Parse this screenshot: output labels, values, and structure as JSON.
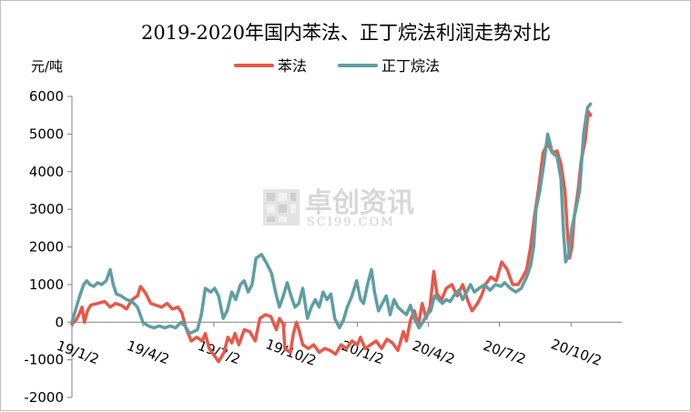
{
  "chart_data": {
    "type": "line",
    "title": "2019-2020年国内苯法、正丁烷法利润走势对比",
    "ylabel": "元/吨",
    "ylim": [
      -2000,
      6000
    ],
    "yticks": [
      6000,
      5000,
      4000,
      3000,
      2000,
      1000,
      0,
      -1000,
      -2000
    ],
    "xlim": [
      "2019-01-01",
      "2020-12-06"
    ],
    "xticks": [
      "2019-01-02",
      "2019-04-02",
      "2019-07-02",
      "2019-10-02",
      "2020-01-02",
      "2020-04-02",
      "2020-07-02",
      "2020-10-02"
    ],
    "xtick_labels": [
      "19/1/2",
      "19/4/2",
      "19/7/2",
      "19/10/2",
      "20/1/2",
      "20/4/2",
      "20/7/2",
      "20/10/2"
    ],
    "legend_position": "top",
    "colors": {
      "series_1": "#e8584a",
      "series_2": "#5f9ea3",
      "axis": "#808080"
    },
    "watermark": {
      "cn": "卓创资讯",
      "en": "SCI99.COM"
    },
    "series": [
      {
        "name": "苯法",
        "points": [
          [
            "2019-01-01",
            -50
          ],
          [
            "2019-01-06",
            50
          ],
          [
            "2019-01-10",
            200
          ],
          [
            "2019-01-14",
            400
          ],
          [
            "2019-01-17",
            0
          ],
          [
            "2019-01-21",
            300
          ],
          [
            "2019-01-25",
            450
          ],
          [
            "2019-02-03",
            500
          ],
          [
            "2019-02-12",
            550
          ],
          [
            "2019-02-19",
            400
          ],
          [
            "2019-02-26",
            500
          ],
          [
            "2019-03-05",
            450
          ],
          [
            "2019-03-12",
            350
          ],
          [
            "2019-03-19",
            600
          ],
          [
            "2019-03-26",
            700
          ],
          [
            "2019-03-30",
            950
          ],
          [
            "2019-04-06",
            750
          ],
          [
            "2019-04-12",
            500
          ],
          [
            "2019-04-19",
            450
          ],
          [
            "2019-04-26",
            400
          ],
          [
            "2019-05-03",
            500
          ],
          [
            "2019-05-10",
            350
          ],
          [
            "2019-05-17",
            400
          ],
          [
            "2019-05-22",
            250
          ],
          [
            "2019-05-27",
            -150
          ],
          [
            "2019-06-03",
            -500
          ],
          [
            "2019-06-10",
            -400
          ],
          [
            "2019-06-17",
            -500
          ],
          [
            "2019-06-21",
            -300
          ],
          [
            "2019-06-26",
            -700
          ],
          [
            "2019-07-03",
            -900
          ],
          [
            "2019-07-08",
            -1050
          ],
          [
            "2019-07-15",
            -800
          ],
          [
            "2019-07-20",
            -400
          ],
          [
            "2019-07-25",
            -550
          ],
          [
            "2019-07-29",
            -300
          ],
          [
            "2019-08-03",
            -600
          ],
          [
            "2019-08-10",
            -200
          ],
          [
            "2019-08-17",
            -250
          ],
          [
            "2019-08-24",
            -500
          ],
          [
            "2019-08-30",
            100
          ],
          [
            "2019-09-06",
            200
          ],
          [
            "2019-09-13",
            150
          ],
          [
            "2019-09-20",
            -200
          ],
          [
            "2019-09-24",
            100
          ],
          [
            "2019-09-29",
            -50
          ],
          [
            "2019-10-01",
            -700
          ],
          [
            "2019-10-08",
            -800
          ],
          [
            "2019-10-12",
            -300
          ],
          [
            "2019-10-16",
            0
          ],
          [
            "2019-10-19",
            -200
          ],
          [
            "2019-10-24",
            -600
          ],
          [
            "2019-10-31",
            -700
          ],
          [
            "2019-11-07",
            -600
          ],
          [
            "2019-11-14",
            -800
          ],
          [
            "2019-11-21",
            -700
          ],
          [
            "2019-11-28",
            -750
          ],
          [
            "2019-12-05",
            -850
          ],
          [
            "2019-12-12",
            -600
          ],
          [
            "2019-12-19",
            -700
          ],
          [
            "2019-12-26",
            -500
          ],
          [
            "2020-01-02",
            -600
          ],
          [
            "2020-01-06",
            -400
          ],
          [
            "2020-01-12",
            -700
          ],
          [
            "2020-01-19",
            -600
          ],
          [
            "2020-01-26",
            -500
          ],
          [
            "2020-02-02",
            -700
          ],
          [
            "2020-02-09",
            -450
          ],
          [
            "2020-02-16",
            -550
          ],
          [
            "2020-02-23",
            -750
          ],
          [
            "2020-03-01",
            -250
          ],
          [
            "2020-03-05",
            -500
          ],
          [
            "2020-03-10",
            50
          ],
          [
            "2020-03-15",
            300
          ],
          [
            "2020-03-20",
            -100
          ],
          [
            "2020-03-25",
            500
          ],
          [
            "2020-03-30",
            100
          ],
          [
            "2020-04-04",
            400
          ],
          [
            "2020-04-09",
            1350
          ],
          [
            "2020-04-13",
            750
          ],
          [
            "2020-04-19",
            600
          ],
          [
            "2020-04-25",
            900
          ],
          [
            "2020-05-02",
            1000
          ],
          [
            "2020-05-09",
            700
          ],
          [
            "2020-05-16",
            1000
          ],
          [
            "2020-05-23",
            550
          ],
          [
            "2020-05-28",
            300
          ],
          [
            "2020-06-04",
            500
          ],
          [
            "2020-06-09",
            700
          ],
          [
            "2020-06-14",
            1000
          ],
          [
            "2020-06-21",
            1200
          ],
          [
            "2020-06-28",
            1100
          ],
          [
            "2020-07-05",
            1600
          ],
          [
            "2020-07-12",
            1400
          ],
          [
            "2020-07-19",
            1000
          ],
          [
            "2020-07-26",
            1000
          ],
          [
            "2020-08-01",
            1200
          ],
          [
            "2020-08-06",
            1400
          ],
          [
            "2020-08-11",
            2000
          ],
          [
            "2020-08-16",
            2800
          ],
          [
            "2020-08-21",
            3500
          ],
          [
            "2020-08-27",
            4500
          ],
          [
            "2020-09-02",
            4750
          ],
          [
            "2020-09-08",
            4500
          ],
          [
            "2020-09-14",
            4550
          ],
          [
            "2020-09-19",
            4200
          ],
          [
            "2020-09-24",
            3500
          ],
          [
            "2020-09-27",
            2500
          ],
          [
            "2020-09-30",
            1700
          ],
          [
            "2020-10-03",
            2000
          ],
          [
            "2020-10-06",
            2800
          ],
          [
            "2020-10-11",
            3500
          ],
          [
            "2020-10-15",
            4300
          ],
          [
            "2020-10-20",
            4800
          ],
          [
            "2020-10-24",
            5600
          ],
          [
            "2020-10-27",
            5500
          ]
        ]
      },
      {
        "name": "正丁烷法",
        "points": [
          [
            "2019-01-01",
            0
          ],
          [
            "2019-01-06",
            350
          ],
          [
            "2019-01-11",
            700
          ],
          [
            "2019-01-16",
            1000
          ],
          [
            "2019-01-20",
            1100
          ],
          [
            "2019-01-24",
            1000
          ],
          [
            "2019-01-29",
            950
          ],
          [
            "2019-02-03",
            1050
          ],
          [
            "2019-02-08",
            1000
          ],
          [
            "2019-02-14",
            1100
          ],
          [
            "2019-02-19",
            1400
          ],
          [
            "2019-02-23",
            1000
          ],
          [
            "2019-02-27",
            750
          ],
          [
            "2019-03-05",
            700
          ],
          [
            "2019-03-12",
            600
          ],
          [
            "2019-03-19",
            550
          ],
          [
            "2019-03-26",
            400
          ],
          [
            "2019-04-02",
            0
          ],
          [
            "2019-04-09",
            -100
          ],
          [
            "2019-04-16",
            -150
          ],
          [
            "2019-04-23",
            -100
          ],
          [
            "2019-04-30",
            -150
          ],
          [
            "2019-05-07",
            -100
          ],
          [
            "2019-05-14",
            -150
          ],
          [
            "2019-05-21",
            0
          ],
          [
            "2019-05-26",
            -100
          ],
          [
            "2019-06-01",
            -300
          ],
          [
            "2019-06-06",
            -250
          ],
          [
            "2019-06-11",
            -200
          ],
          [
            "2019-06-16",
            200
          ],
          [
            "2019-06-21",
            900
          ],
          [
            "2019-06-28",
            800
          ],
          [
            "2019-07-03",
            900
          ],
          [
            "2019-07-08",
            700
          ],
          [
            "2019-07-14",
            100
          ],
          [
            "2019-07-19",
            300
          ],
          [
            "2019-07-25",
            800
          ],
          [
            "2019-07-30",
            600
          ],
          [
            "2019-08-05",
            1000
          ],
          [
            "2019-08-10",
            1100
          ],
          [
            "2019-08-15",
            800
          ],
          [
            "2019-08-20",
            1000
          ],
          [
            "2019-08-25",
            1700
          ],
          [
            "2019-09-01",
            1800
          ],
          [
            "2019-09-08",
            1550
          ],
          [
            "2019-09-14",
            1300
          ],
          [
            "2019-09-19",
            800
          ],
          [
            "2019-09-24",
            400
          ],
          [
            "2019-09-29",
            700
          ],
          [
            "2019-10-04",
            1050
          ],
          [
            "2019-10-09",
            700
          ],
          [
            "2019-10-14",
            400
          ],
          [
            "2019-10-19",
            500
          ],
          [
            "2019-10-24",
            900
          ],
          [
            "2019-10-30",
            100
          ],
          [
            "2019-11-04",
            400
          ],
          [
            "2019-11-09",
            600
          ],
          [
            "2019-11-14",
            400
          ],
          [
            "2019-11-19",
            800
          ],
          [
            "2019-11-24",
            600
          ],
          [
            "2019-11-29",
            750
          ],
          [
            "2019-12-04",
            100
          ],
          [
            "2019-12-10",
            -150
          ],
          [
            "2019-12-15",
            50
          ],
          [
            "2019-12-20",
            400
          ],
          [
            "2019-12-26",
            700
          ],
          [
            "2020-01-01",
            1100
          ],
          [
            "2020-01-06",
            600
          ],
          [
            "2020-01-10",
            500
          ],
          [
            "2020-01-15",
            1000
          ],
          [
            "2020-01-20",
            1400
          ],
          [
            "2020-01-24",
            800
          ],
          [
            "2020-01-29",
            300
          ],
          [
            "2020-02-03",
            500
          ],
          [
            "2020-02-08",
            700
          ],
          [
            "2020-02-13",
            200
          ],
          [
            "2020-02-18",
            600
          ],
          [
            "2020-02-23",
            400
          ],
          [
            "2020-02-28",
            300
          ],
          [
            "2020-03-05",
            200
          ],
          [
            "2020-03-10",
            450
          ],
          [
            "2020-03-15",
            100
          ],
          [
            "2020-03-21",
            -150
          ],
          [
            "2020-03-26",
            0
          ],
          [
            "2020-03-31",
            200
          ],
          [
            "2020-04-05",
            300
          ],
          [
            "2020-04-10",
            700
          ],
          [
            "2020-04-15",
            600
          ],
          [
            "2020-04-20",
            500
          ],
          [
            "2020-04-25",
            600
          ],
          [
            "2020-04-30",
            550
          ],
          [
            "2020-05-06",
            750
          ],
          [
            "2020-05-11",
            850
          ],
          [
            "2020-05-16",
            600
          ],
          [
            "2020-05-21",
            800
          ],
          [
            "2020-05-26",
            1000
          ],
          [
            "2020-05-31",
            800
          ],
          [
            "2020-06-06",
            900
          ],
          [
            "2020-06-13",
            1000
          ],
          [
            "2020-06-20",
            850
          ],
          [
            "2020-06-27",
            1000
          ],
          [
            "2020-07-04",
            950
          ],
          [
            "2020-07-09",
            1050
          ],
          [
            "2020-07-16",
            900
          ],
          [
            "2020-07-23",
            800
          ],
          [
            "2020-07-30",
            900
          ],
          [
            "2020-08-06",
            1200
          ],
          [
            "2020-08-11",
            1500
          ],
          [
            "2020-08-15",
            2000
          ],
          [
            "2020-08-18",
            3000
          ],
          [
            "2020-08-23",
            3500
          ],
          [
            "2020-08-28",
            4200
          ],
          [
            "2020-09-02",
            5000
          ],
          [
            "2020-09-08",
            4500
          ],
          [
            "2020-09-14",
            4400
          ],
          [
            "2020-09-19",
            3800
          ],
          [
            "2020-09-22",
            2500
          ],
          [
            "2020-09-25",
            1600
          ],
          [
            "2020-09-29",
            1800
          ],
          [
            "2020-10-03",
            2500
          ],
          [
            "2020-10-08",
            3000
          ],
          [
            "2020-10-13",
            3500
          ],
          [
            "2020-10-18",
            5000
          ],
          [
            "2020-10-23",
            5700
          ],
          [
            "2020-10-27",
            5800
          ]
        ]
      }
    ]
  }
}
